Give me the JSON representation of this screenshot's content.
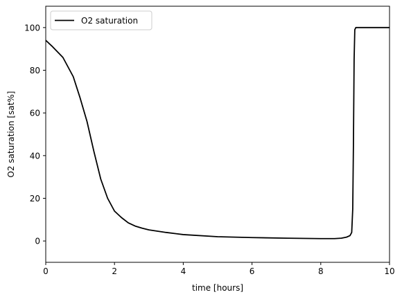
{
  "chart_data": {
    "type": "line",
    "title": "",
    "xlabel": "time [hours]",
    "ylabel": "O2 saturation [sat%]",
    "xlim": [
      0,
      10
    ],
    "ylim": [
      -10,
      110
    ],
    "xticks": [
      0,
      2,
      4,
      6,
      8,
      10
    ],
    "yticks": [
      0,
      20,
      40,
      60,
      80,
      100
    ],
    "grid": false,
    "legend_position": "top-left",
    "series": [
      {
        "name": "O2 saturation",
        "color": "#000000",
        "x": [
          0,
          0.2,
          0.5,
          0.8,
          1.0,
          1.2,
          1.4,
          1.6,
          1.8,
          2.0,
          2.2,
          2.4,
          2.6,
          2.8,
          3.0,
          3.5,
          4.0,
          5.0,
          6.0,
          7.0,
          8.0,
          8.4,
          8.6,
          8.75,
          8.85,
          8.9,
          8.93,
          8.95,
          8.97,
          8.99,
          9.02,
          9.1,
          10.0
        ],
        "y": [
          94,
          91,
          86,
          77,
          67,
          56,
          42,
          29,
          20,
          14,
          11,
          8.5,
          7,
          6,
          5.2,
          4,
          3,
          2,
          1.6,
          1.3,
          1.1,
          1.1,
          1.3,
          1.8,
          2.5,
          4,
          15,
          45,
          85,
          99,
          100,
          100,
          100
        ]
      }
    ]
  }
}
